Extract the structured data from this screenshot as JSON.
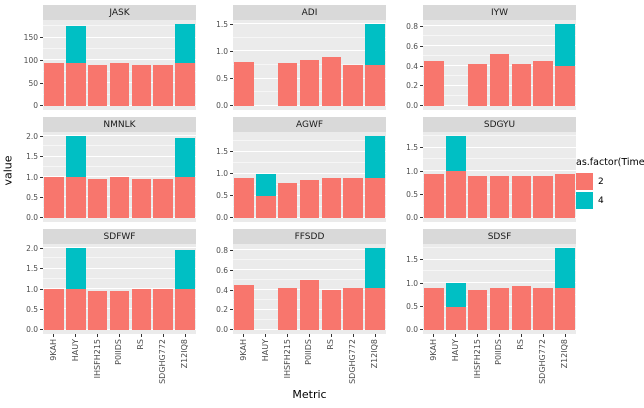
{
  "figure": {
    "x_title": "Metric",
    "y_title": "value"
  },
  "legend": {
    "title": "as.factor(Time)",
    "entries": [
      {
        "label": "2",
        "color": "#F8766D"
      },
      {
        "label": "4",
        "color": "#00BFC4"
      }
    ]
  },
  "chart_data": {
    "type": "bar",
    "stacked": true,
    "xlabel": "Metric",
    "ylabel": "value",
    "legend_position": "right",
    "grid": true,
    "panel_background": "#EBEBEB",
    "strip_background": "#D9D9D9",
    "categories": [
      "9KAH",
      "HAUY",
      "IHSFH215",
      "P0IIDS",
      "RS",
      "SDGHG772",
      "Z12IQ8"
    ],
    "series_names": [
      "2",
      "4"
    ],
    "series_colors": [
      "#F8766D",
      "#00BFC4"
    ],
    "facets": [
      {
        "title": "JASK",
        "tick_values": [
          0,
          50,
          100,
          150
        ],
        "tick_labels": [
          "0",
          "50",
          "100",
          "150"
        ],
        "series": [
          {
            "name": "2",
            "values": [
              95,
              95,
              90,
              95,
              90,
              90,
              95
            ]
          },
          {
            "name": "4",
            "values": [
              0,
              80,
              0,
              0,
              0,
              0,
              85
            ]
          }
        ]
      },
      {
        "title": "ADI",
        "tick_values": [
          0,
          0.5,
          1.0,
          1.5
        ],
        "tick_labels": [
          "0.0",
          "0.5",
          "1.0",
          "1.5"
        ],
        "series": [
          {
            "name": "2",
            "values": [
              0.8,
              0,
              0.78,
              0.85,
              0.9,
              0.75,
              0.75
            ]
          },
          {
            "name": "4",
            "values": [
              0,
              0,
              0,
              0,
              0,
              0,
              0.75
            ]
          }
        ]
      },
      {
        "title": "IYW",
        "tick_values": [
          0,
          0.2,
          0.4,
          0.6,
          0.8
        ],
        "tick_labels": [
          "0.0",
          "0.2",
          "0.4",
          "0.6",
          "0.8"
        ],
        "series": [
          {
            "name": "2",
            "values": [
              0.45,
              0,
              0.42,
              0.52,
              0.42,
              0.45,
              0.4
            ]
          },
          {
            "name": "4",
            "values": [
              0,
              0,
              0,
              0,
              0,
              0,
              0.42
            ]
          }
        ]
      },
      {
        "title": "NMNLK",
        "tick_values": [
          0,
          0.5,
          1.0,
          1.5,
          2.0
        ],
        "tick_labels": [
          "0.0",
          "0.5",
          "1.0",
          "1.5",
          "2.0"
        ],
        "series": [
          {
            "name": "2",
            "values": [
              1.0,
              1.0,
              0.95,
              1.0,
              0.95,
              0.95,
              1.0
            ]
          },
          {
            "name": "4",
            "values": [
              0,
              1.0,
              0,
              0,
              0,
              0,
              0.95
            ]
          }
        ]
      },
      {
        "title": "AGWF",
        "tick_values": [
          0,
          0.5,
          1.0,
          1.5
        ],
        "tick_labels": [
          "0.0",
          "0.5",
          "1.0",
          "1.5"
        ],
        "series": [
          {
            "name": "2",
            "values": [
              0.9,
              0.5,
              0.8,
              0.85,
              0.9,
              0.9,
              0.9
            ]
          },
          {
            "name": "4",
            "values": [
              0,
              0.5,
              0,
              0,
              0,
              0,
              0.95
            ]
          }
        ]
      },
      {
        "title": "SDGYU",
        "tick_values": [
          0,
          0.5,
          1.0,
          1.5
        ],
        "tick_labels": [
          "0.0",
          "0.5",
          "1.0",
          "1.5"
        ],
        "series": [
          {
            "name": "2",
            "values": [
              0.95,
              1.0,
              0.9,
              0.9,
              0.9,
              0.9,
              0.95
            ]
          },
          {
            "name": "4",
            "values": [
              0,
              0.75,
              0,
              0,
              0,
              0,
              0
            ]
          }
        ]
      },
      {
        "title": "SDFWF",
        "tick_values": [
          0,
          0.5,
          1.0,
          1.5,
          2.0
        ],
        "tick_labels": [
          "0.0",
          "0.5",
          "1.0",
          "1.5",
          "2.0"
        ],
        "series": [
          {
            "name": "2",
            "values": [
              1.0,
              1.0,
              0.95,
              0.95,
              1.0,
              1.0,
              1.0
            ]
          },
          {
            "name": "4",
            "values": [
              0,
              1.0,
              0,
              0,
              0,
              0,
              0.95
            ]
          }
        ]
      },
      {
        "title": "FFSDD",
        "tick_values": [
          0,
          0.2,
          0.4,
          0.6,
          0.8
        ],
        "tick_labels": [
          "0.0",
          "0.2",
          "0.4",
          "0.6",
          "0.8"
        ],
        "series": [
          {
            "name": "2",
            "values": [
              0.45,
              0,
              0.42,
              0.5,
              0.4,
              0.42,
              0.42
            ]
          },
          {
            "name": "4",
            "values": [
              0,
              0,
              0,
              0,
              0,
              0,
              0.4
            ]
          }
        ]
      },
      {
        "title": "SDSF",
        "tick_values": [
          0,
          0.5,
          1.0,
          1.5
        ],
        "tick_labels": [
          "0.0",
          "0.5",
          "1.0",
          "1.5"
        ],
        "series": [
          {
            "name": "2",
            "values": [
              0.9,
              0.5,
              0.85,
              0.9,
              0.95,
              0.9,
              0.9
            ]
          },
          {
            "name": "4",
            "values": [
              0,
              0.5,
              0,
              0,
              0,
              0,
              0.85
            ]
          }
        ]
      }
    ]
  }
}
